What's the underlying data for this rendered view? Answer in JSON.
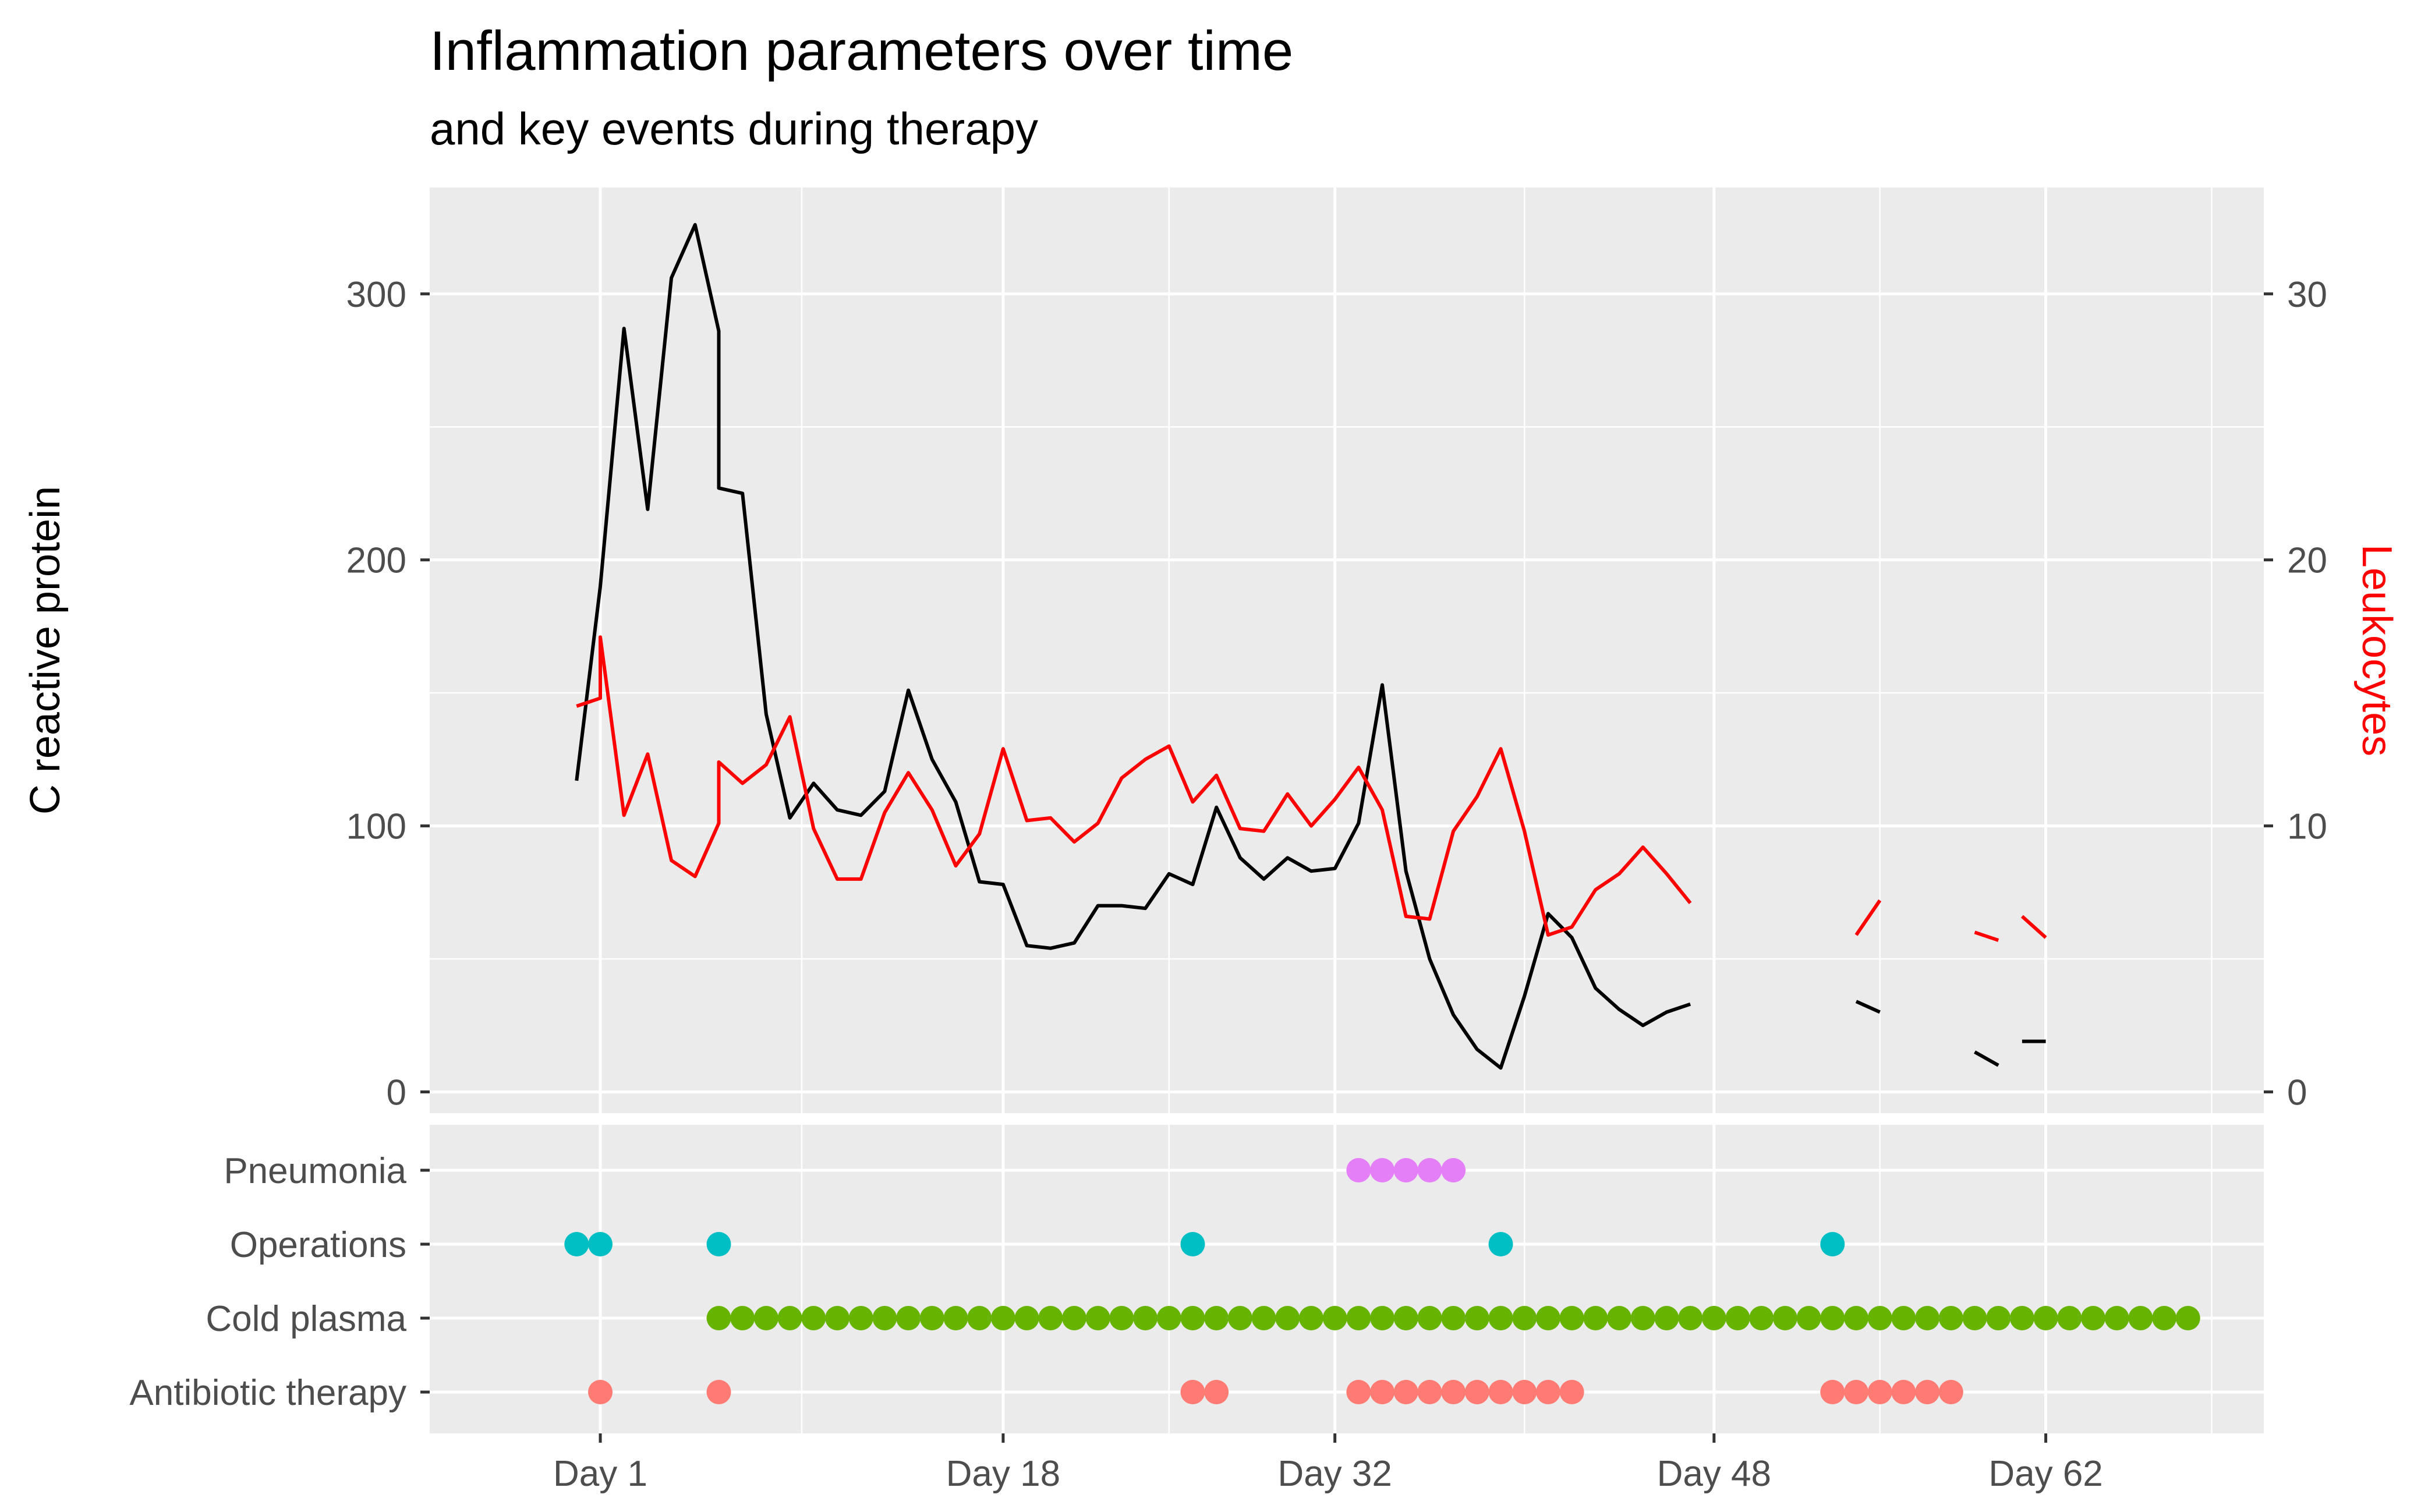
{
  "chart_data": {
    "type": "line",
    "title": "Inflammation parameters over time",
    "subtitle": "and key events during therapy",
    "ylabel_left": "C reactive protein",
    "ylabel_right": "Leukocytes",
    "ylim_left": [
      -8,
      340
    ],
    "ylim_right": [
      -0.8,
      34
    ],
    "xlim": [
      -6.2,
      71.2
    ],
    "x_ticks": [
      {
        "value": 1,
        "label": "Day 1"
      },
      {
        "value": 18,
        "label": "Day 18"
      },
      {
        "value": 32,
        "label": "Day 32"
      },
      {
        "value": 48,
        "label": "Day 48"
      },
      {
        "value": 62,
        "label": "Day 62"
      }
    ],
    "y_ticks_left": [
      0,
      100,
      200,
      300
    ],
    "y_ticks_right": [
      0,
      10,
      20,
      30
    ],
    "series": [
      {
        "name": "C reactive protein",
        "color": "#000000",
        "axis": "left",
        "points": [
          [
            0,
            117
          ],
          [
            1,
            190
          ],
          [
            2,
            287
          ],
          [
            3,
            219
          ],
          [
            4,
            306
          ],
          [
            5,
            326
          ],
          [
            6,
            286
          ],
          [
            6,
            227
          ],
          [
            7,
            225
          ],
          [
            8,
            142
          ],
          [
            9,
            103
          ],
          [
            10,
            116
          ],
          [
            11,
            106
          ],
          [
            12,
            104
          ],
          [
            13,
            113
          ],
          [
            14,
            151
          ],
          [
            15,
            125
          ],
          [
            16,
            109
          ],
          [
            17,
            79
          ],
          [
            18,
            78
          ],
          [
            19,
            55
          ],
          [
            20,
            54
          ],
          [
            21,
            56
          ],
          [
            22,
            70
          ],
          [
            23,
            70
          ],
          [
            24,
            69
          ],
          [
            25,
            82
          ],
          [
            26,
            78
          ],
          [
            27,
            107
          ],
          [
            28,
            88
          ],
          [
            29,
            80
          ],
          [
            30,
            88
          ],
          [
            31,
            83
          ],
          [
            32,
            84
          ],
          [
            33,
            101
          ],
          [
            34,
            153
          ],
          [
            35,
            83
          ],
          [
            36,
            50
          ],
          [
            37,
            29
          ],
          [
            38,
            16
          ],
          [
            39,
            9
          ],
          [
            40,
            36
          ],
          [
            41,
            67
          ],
          [
            42,
            58
          ],
          [
            43,
            39
          ],
          [
            44,
            31
          ],
          [
            45,
            25
          ],
          [
            46,
            30
          ],
          [
            47,
            33
          ],
          null,
          [
            54,
            34
          ],
          [
            55,
            30
          ],
          null,
          [
            59,
            15
          ],
          [
            60,
            10
          ],
          null,
          [
            61,
            19
          ],
          [
            62,
            19
          ]
        ]
      },
      {
        "name": "Leukocytes",
        "color": "#ff0000",
        "axis": "right",
        "points": [
          [
            0,
            14.5
          ],
          [
            1,
            14.8
          ],
          [
            1,
            17.1
          ],
          [
            2,
            10.4
          ],
          [
            3,
            12.7
          ],
          [
            4,
            8.7
          ],
          [
            5,
            8.1
          ],
          [
            6,
            10.1
          ],
          [
            6,
            12.4
          ],
          [
            7,
            11.6
          ],
          [
            8,
            12.3
          ],
          [
            9,
            14.1
          ],
          [
            10,
            9.9
          ],
          [
            11,
            8.0
          ],
          [
            12,
            8.0
          ],
          [
            13,
            10.5
          ],
          [
            14,
            12.0
          ],
          [
            15,
            10.6
          ],
          [
            16,
            8.5
          ],
          [
            17,
            9.7
          ],
          [
            18,
            12.9
          ],
          [
            19,
            10.2
          ],
          [
            20,
            10.3
          ],
          [
            21,
            9.4
          ],
          [
            22,
            10.1
          ],
          [
            23,
            11.8
          ],
          [
            24,
            12.5
          ],
          [
            25,
            13.0
          ],
          [
            26,
            10.9
          ],
          [
            27,
            11.9
          ],
          [
            28,
            9.9
          ],
          [
            29,
            9.8
          ],
          [
            30,
            11.2
          ],
          [
            31,
            10.0
          ],
          [
            32,
            11.0
          ],
          [
            33,
            12.2
          ],
          [
            34,
            10.6
          ],
          [
            35,
            6.6
          ],
          [
            36,
            6.5
          ],
          [
            37,
            9.8
          ],
          [
            38,
            11.1
          ],
          [
            39,
            12.9
          ],
          [
            40,
            9.8
          ],
          [
            41,
            5.9
          ],
          [
            42,
            6.2
          ],
          [
            43,
            7.6
          ],
          [
            44,
            8.2
          ],
          [
            45,
            9.2
          ],
          [
            46,
            8.2
          ],
          [
            47,
            7.1
          ],
          null,
          [
            54,
            5.9
          ],
          [
            55,
            7.2
          ],
          null,
          [
            59,
            6.0
          ],
          [
            60,
            5.7
          ],
          null,
          [
            61,
            6.6
          ],
          [
            62,
            5.8
          ]
        ]
      }
    ],
    "events": {
      "categories": [
        "Pneumonia",
        "Operations",
        "Cold plasma",
        "Antibiotic therapy"
      ],
      "colors": {
        "Pneumonia": "#e47ff7",
        "Operations": "#00bfc4",
        "Cold plasma": "#66b300",
        "Antibiotic therapy": "#ff7b73"
      },
      "points": [
        {
          "category": "Pneumonia",
          "days": [
            33,
            34,
            35,
            36,
            37
          ]
        },
        {
          "category": "Operations",
          "days": [
            0,
            1,
            6,
            26,
            39,
            53
          ]
        },
        {
          "category": "Cold plasma",
          "days": [
            6,
            7,
            8,
            9,
            10,
            11,
            12,
            13,
            14,
            15,
            16,
            17,
            18,
            19,
            20,
            21,
            22,
            23,
            24,
            25,
            26,
            27,
            28,
            29,
            30,
            31,
            32,
            33,
            34,
            35,
            36,
            37,
            38,
            39,
            40,
            41,
            42,
            43,
            44,
            45,
            46,
            47,
            48,
            49,
            50,
            51,
            52,
            53,
            54,
            55,
            56,
            57,
            58,
            59,
            60,
            61,
            62,
            63,
            64,
            65,
            66,
            67,
            68
          ]
        },
        {
          "category": "Antibiotic therapy",
          "days": [
            1,
            6,
            26,
            27,
            33,
            34,
            35,
            36,
            37,
            38,
            39,
            40,
            41,
            42,
            53,
            54,
            55,
            56,
            57,
            58
          ]
        }
      ]
    }
  }
}
